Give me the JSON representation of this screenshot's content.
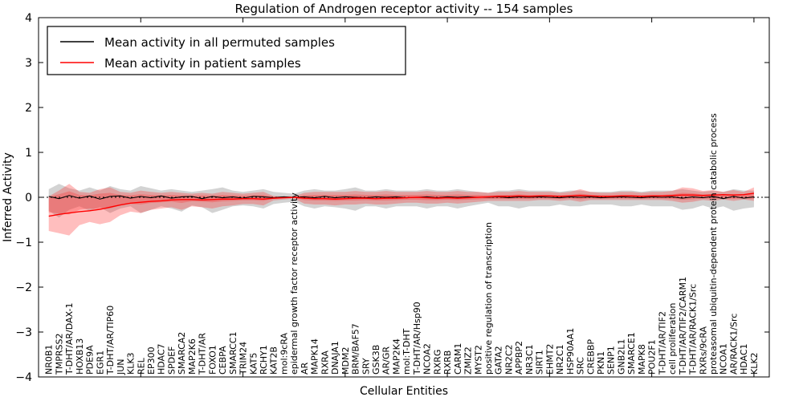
{
  "title": "Regulation of Androgen receptor activity -- 154 samples",
  "xlabel": "Cellular Entities",
  "ylabel": "Inferred Activity",
  "legend": [
    {
      "label": "Mean activity in all permuted samples",
      "color": "#000000"
    },
    {
      "label": "Mean activity in patient samples",
      "color": "#ff0000"
    }
  ],
  "colors": {
    "permuted_line": "#000000",
    "patient_line": "#ff0000",
    "permuted_band": "rgba(128,128,128,0.35)",
    "patient_band": "rgba(255,40,40,0.30)",
    "zero_line": "#000000"
  },
  "chart_data": {
    "type": "line",
    "title": "Regulation of Androgen receptor activity -- 154 samples",
    "xlabel": "Cellular Entities",
    "ylabel": "Inferred Activity",
    "ylim": [
      -4,
      4
    ],
    "yticks": [
      4,
      3,
      2,
      1,
      0,
      -1,
      -2,
      -3,
      -4
    ],
    "grid": false,
    "legend_position": "upper left",
    "categories": [
      "NR0B1",
      "TMPRSS2",
      "T-DHT/AR/DAX-1",
      "HOXB13",
      "PDE9A",
      "EGR1",
      "T-DHT/AR/TIP60",
      "JUN",
      "KLK3",
      "REL",
      "EP300",
      "HDAC7",
      "SPDEF",
      "SMARCA2",
      "MAP2K6",
      "T-DHT/AR",
      "FOXO1",
      "CEBPA",
      "SMARCC1",
      "TRIM24",
      "KAT5",
      "RCHY1",
      "KAT2B",
      "mol:9cRA",
      "epidermal growth factor receptor activity",
      "AR",
      "MAPK14",
      "RXRA",
      "DNAJA1",
      "MDM2",
      "BRM/BAF57",
      "SRY",
      "GSK3B",
      "AR/GR",
      "MAP2K4",
      "mol:T-DHT",
      "T-DHT/AR/Hsp90",
      "NCOA2",
      "RXRG",
      "RXRB",
      "CARM1",
      "ZMIZ2",
      "MYST2",
      "positive regulation of transcription",
      "GATA2",
      "NR2C2",
      "APPBP2",
      "NR3C1",
      "SIRT1",
      "EHMT2",
      "NR2C1",
      "HSP90AA1",
      "SRC",
      "CREBBP",
      "PKN1",
      "SENP1",
      "GNB2L1",
      "SMARCE1",
      "MAPK8",
      "POU2F1",
      "T-DHT/AR/TIF2",
      "cell proliferation",
      "T-DHT/AR/TIF2/CARM1",
      "T-DHT/AR/RACK1/Src",
      "RXRs/9cRA",
      "proteasomal ubiquitin-dependent protein catabolic process",
      "NCOA1",
      "AR/RACK1/Src",
      "HDAC1",
      "KLK2"
    ],
    "series": [
      {
        "name": "Mean activity in all permuted samples",
        "color": "#000000",
        "values": [
          0.02,
          -0.03,
          0.04,
          -0.02,
          0.03,
          -0.04,
          0.02,
          0.03,
          -0.02,
          0.02,
          -0.01,
          0.03,
          -0.02,
          0.01,
          0.02,
          -0.03,
          0.02,
          -0.01,
          0.01,
          -0.02,
          0.02,
          0.01,
          -0.01,
          0.01,
          0.0,
          0.01,
          -0.01,
          0.02,
          -0.01,
          0.01,
          0.0,
          -0.01,
          0.01,
          0.0,
          0.01,
          -0.01,
          0.0,
          0.01,
          -0.01,
          0.01,
          0.0,
          0.01,
          0.0,
          0.0,
          0.01,
          -0.01,
          0.01,
          0.0,
          0.01,
          0.0,
          -0.01,
          0.01,
          0.0,
          0.01,
          -0.01,
          0.0,
          0.01,
          0.0,
          -0.01,
          0.01,
          0.0,
          0.01,
          -0.02,
          0.01,
          -0.01,
          0.02,
          -0.03,
          0.02,
          -0.02,
          0.01
        ]
      },
      {
        "name": "Mean activity in patient samples",
        "color": "#ff0000",
        "values": [
          -0.42,
          -0.38,
          -0.35,
          -0.32,
          -0.3,
          -0.27,
          -0.22,
          -0.17,
          -0.13,
          -0.11,
          -0.09,
          -0.08,
          -0.06,
          -0.05,
          -0.05,
          -0.06,
          -0.05,
          -0.04,
          -0.04,
          -0.03,
          -0.03,
          -0.04,
          -0.02,
          -0.01,
          0.0,
          -0.02,
          -0.03,
          -0.03,
          -0.04,
          -0.03,
          -0.02,
          -0.02,
          -0.03,
          -0.02,
          -0.02,
          -0.01,
          0.0,
          -0.01,
          -0.02,
          -0.01,
          -0.02,
          -0.01,
          0.0,
          0.01,
          0.02,
          0.02,
          0.03,
          0.02,
          0.03,
          0.03,
          0.02,
          0.03,
          0.04,
          0.03,
          0.02,
          0.02,
          0.03,
          0.03,
          0.02,
          0.03,
          0.03,
          0.04,
          0.05,
          0.05,
          0.04,
          0.05,
          0.06,
          0.05,
          0.06,
          0.09
        ]
      }
    ],
    "bands": [
      {
        "name": "permuted samples range",
        "color": "rgba(128,128,128,0.35)",
        "upper": [
          0.18,
          0.3,
          0.2,
          0.15,
          0.22,
          0.15,
          0.25,
          0.18,
          0.15,
          0.25,
          0.2,
          0.15,
          0.18,
          0.15,
          0.12,
          0.15,
          0.18,
          0.22,
          0.15,
          0.12,
          0.15,
          0.18,
          0.12,
          0.1,
          0.08,
          0.15,
          0.18,
          0.15,
          0.15,
          0.18,
          0.22,
          0.15,
          0.15,
          0.18,
          0.15,
          0.15,
          0.15,
          0.18,
          0.15,
          0.15,
          0.18,
          0.15,
          0.12,
          0.1,
          0.15,
          0.15,
          0.18,
          0.15,
          0.15,
          0.15,
          0.12,
          0.15,
          0.15,
          0.12,
          0.12,
          0.12,
          0.15,
          0.15,
          0.12,
          0.15,
          0.15,
          0.15,
          0.18,
          0.15,
          0.12,
          0.15,
          0.12,
          0.18,
          0.15,
          0.15
        ],
        "lower": [
          -0.3,
          -0.45,
          -0.28,
          -0.2,
          -0.3,
          -0.22,
          -0.35,
          -0.25,
          -0.2,
          -0.35,
          -0.28,
          -0.2,
          -0.25,
          -0.32,
          -0.18,
          -0.22,
          -0.35,
          -0.28,
          -0.2,
          -0.18,
          -0.2,
          -0.25,
          -0.15,
          -0.12,
          -0.1,
          -0.2,
          -0.25,
          -0.2,
          -0.22,
          -0.25,
          -0.3,
          -0.2,
          -0.2,
          -0.25,
          -0.2,
          -0.2,
          -0.2,
          -0.25,
          -0.2,
          -0.2,
          -0.25,
          -0.2,
          -0.16,
          -0.12,
          -0.2,
          -0.2,
          -0.25,
          -0.2,
          -0.2,
          -0.2,
          -0.16,
          -0.2,
          -0.2,
          -0.16,
          -0.16,
          -0.16,
          -0.2,
          -0.2,
          -0.16,
          -0.2,
          -0.2,
          -0.2,
          -0.28,
          -0.25,
          -0.18,
          -0.25,
          -0.2,
          -0.3,
          -0.25,
          -0.22
        ]
      },
      {
        "name": "patient samples range",
        "color": "rgba(255,40,40,0.30)",
        "upper": [
          0.02,
          0.15,
          0.3,
          0.12,
          0.1,
          0.18,
          0.22,
          0.12,
          0.1,
          0.15,
          0.12,
          0.1,
          0.12,
          0.1,
          0.08,
          0.1,
          0.08,
          0.12,
          0.1,
          0.08,
          0.1,
          0.12,
          0.03,
          0.02,
          0.02,
          0.1,
          0.12,
          0.12,
          0.12,
          0.12,
          0.14,
          0.12,
          0.12,
          0.14,
          0.12,
          0.12,
          0.12,
          0.14,
          0.12,
          0.12,
          0.14,
          0.12,
          0.12,
          0.1,
          0.12,
          0.12,
          0.14,
          0.12,
          0.12,
          0.12,
          0.1,
          0.12,
          0.18,
          0.12,
          0.1,
          0.1,
          0.12,
          0.12,
          0.1,
          0.12,
          0.12,
          0.14,
          0.22,
          0.2,
          0.14,
          0.16,
          0.12,
          0.16,
          0.12,
          0.22
        ],
        "lower": [
          -0.75,
          -0.8,
          -0.85,
          -0.62,
          -0.55,
          -0.6,
          -0.55,
          -0.4,
          -0.32,
          -0.35,
          -0.28,
          -0.25,
          -0.22,
          -0.28,
          -0.2,
          -0.22,
          -0.25,
          -0.2,
          -0.18,
          -0.15,
          -0.15,
          -0.18,
          -0.07,
          -0.05,
          -0.03,
          -0.14,
          -0.16,
          -0.16,
          -0.18,
          -0.16,
          -0.16,
          -0.14,
          -0.16,
          -0.16,
          -0.14,
          -0.12,
          -0.12,
          -0.14,
          -0.14,
          -0.12,
          -0.14,
          -0.12,
          -0.1,
          -0.08,
          -0.08,
          -0.08,
          -0.08,
          -0.08,
          -0.06,
          -0.06,
          -0.08,
          -0.06,
          -0.1,
          -0.06,
          -0.06,
          -0.06,
          -0.06,
          -0.06,
          -0.06,
          -0.06,
          -0.06,
          -0.08,
          -0.12,
          -0.1,
          -0.06,
          -0.08,
          -0.05,
          -0.08,
          -0.05,
          -0.08
        ]
      }
    ]
  }
}
